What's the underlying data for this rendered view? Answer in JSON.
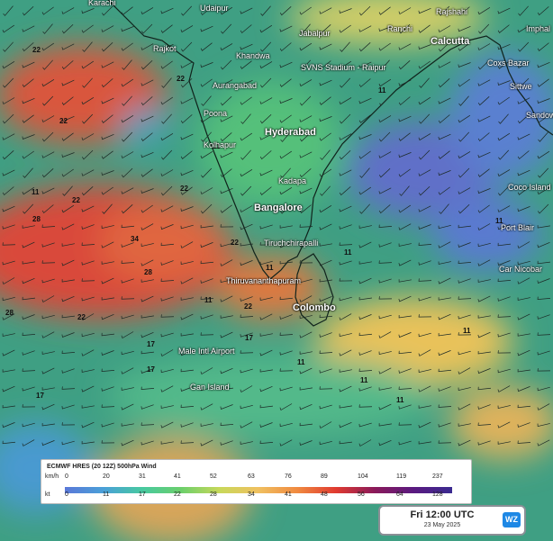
{
  "legend": {
    "title": "ECMWF HRES (20 12Z) 500hPa Wind",
    "kmh_unit": "km/h",
    "kt_unit": "kt",
    "kmh": [
      "0",
      "20",
      "31",
      "41",
      "52",
      "63",
      "76",
      "89",
      "104",
      "119",
      "237"
    ],
    "kt": [
      "0",
      "11",
      "17",
      "22",
      "28",
      "34",
      "41",
      "48",
      "56",
      "64",
      "128"
    ],
    "colors": [
      "#5a78d8",
      "#4aa0d8",
      "#47c9a0",
      "#6bcf6b",
      "#c8d85a",
      "#f0c060",
      "#f08a40",
      "#e03a30",
      "#8a1a5a",
      "#5a1a80",
      "#3a2a90"
    ]
  },
  "time": {
    "main": "Fri 12:00 UTC",
    "date": "23 May 2025",
    "logo": "WZ"
  },
  "cities": [
    {
      "name": "Karachi",
      "big": false
    },
    {
      "name": "Udaipur",
      "big": false
    },
    {
      "name": "Rajshahi",
      "big": false
    },
    {
      "name": "Jabalpur",
      "big": false
    },
    {
      "name": "Ranchi",
      "big": false
    },
    {
      "name": "Calcutta",
      "big": true
    },
    {
      "name": "Imphal",
      "big": false
    },
    {
      "name": "Rajkot",
      "big": false
    },
    {
      "name": "Khandwa",
      "big": false
    },
    {
      "name": "SVNS Stadium - Raipur",
      "big": false
    },
    {
      "name": "Coxs Bazar",
      "big": false
    },
    {
      "name": "Aurangabad",
      "big": false
    },
    {
      "name": "Sittwe",
      "big": false
    },
    {
      "name": "Poona",
      "big": false
    },
    {
      "name": "Hyderabad",
      "big": true
    },
    {
      "name": "Sandoway",
      "big": false
    },
    {
      "name": "Kolhapur",
      "big": false
    },
    {
      "name": "Kadapa",
      "big": false
    },
    {
      "name": "Coco Island",
      "big": false
    },
    {
      "name": "Bangalore",
      "big": true
    },
    {
      "name": "Port Blair",
      "big": false
    },
    {
      "name": "Tiruchchirapalli",
      "big": false
    },
    {
      "name": "Car Nicobar",
      "big": false
    },
    {
      "name": "Thiruvananthapuram",
      "big": false
    },
    {
      "name": "Colombo",
      "big": true
    },
    {
      "name": "Male Intl Airport",
      "big": false
    },
    {
      "name": "Gan Island",
      "big": false
    }
  ],
  "contour_labels": [
    "22",
    "22",
    "22",
    "11",
    "22",
    "22",
    "11",
    "11",
    "11",
    "22",
    "28",
    "34",
    "28",
    "28",
    "22",
    "22",
    "17",
    "17",
    "11",
    "11",
    "17",
    "11",
    "11",
    "11",
    "17",
    "11",
    "11"
  ]
}
